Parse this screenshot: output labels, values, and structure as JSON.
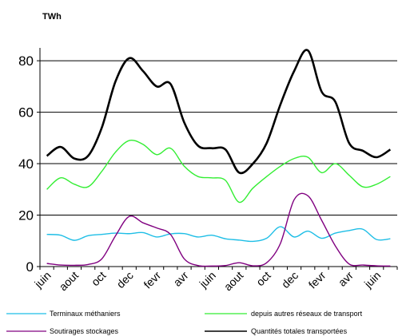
{
  "chart_data": {
    "type": "line",
    "title": "",
    "ylabel": "TWh",
    "xlabel": "",
    "ylim": [
      0,
      85
    ],
    "yticks": [
      0,
      20,
      40,
      60,
      80
    ],
    "grid": true,
    "legend_position": "bottom",
    "x": [
      "juin",
      "",
      "aout",
      "",
      "oct",
      "",
      "dec",
      "",
      "fevr",
      "",
      "avr",
      "",
      "juin",
      "",
      "aout",
      "",
      "oct",
      "",
      "dec",
      "",
      "fevr",
      "",
      "avr",
      "",
      "juin",
      ""
    ],
    "series": [
      {
        "name": "Terminaux méthaniers",
        "color": "#1EBEE6",
        "values": [
          12.5,
          12.2,
          10.2,
          12,
          12.5,
          13,
          12.8,
          13.2,
          11.5,
          12.7,
          12.8,
          11.5,
          12.2,
          10.8,
          10.3,
          9.8,
          11,
          15.5,
          11.5,
          13.8,
          11,
          13,
          14,
          14.5,
          10.5,
          10.8
        ]
      },
      {
        "name": "depuis autres réseaux de transport",
        "color": "#33EE33",
        "values": [
          30,
          34.5,
          32,
          31,
          37,
          44.5,
          49,
          47.5,
          43.5,
          46,
          39,
          35,
          34.5,
          33.5,
          25,
          30.5,
          35,
          39,
          42,
          42.5,
          36.5,
          40,
          35.5,
          31,
          32,
          35
        ]
      },
      {
        "name": "Soutirages stockages",
        "color": "#800080",
        "values": [
          1.2,
          0.6,
          0.5,
          0.8,
          3,
          12,
          19.5,
          17,
          15,
          12.5,
          3,
          0.4,
          0.2,
          0.4,
          1.5,
          0.3,
          1.5,
          9,
          26,
          27.5,
          18,
          8,
          1,
          0.6,
          0.3,
          0.2
        ]
      },
      {
        "name": "Quantités totales transportées",
        "color": "#000000",
        "values": [
          43,
          46.5,
          42,
          43,
          54,
          72,
          81,
          76,
          70,
          71,
          56,
          47,
          46,
          45.5,
          36.5,
          40,
          48,
          63,
          76,
          84,
          68,
          64,
          48,
          45,
          42.5,
          45.5
        ]
      }
    ]
  }
}
